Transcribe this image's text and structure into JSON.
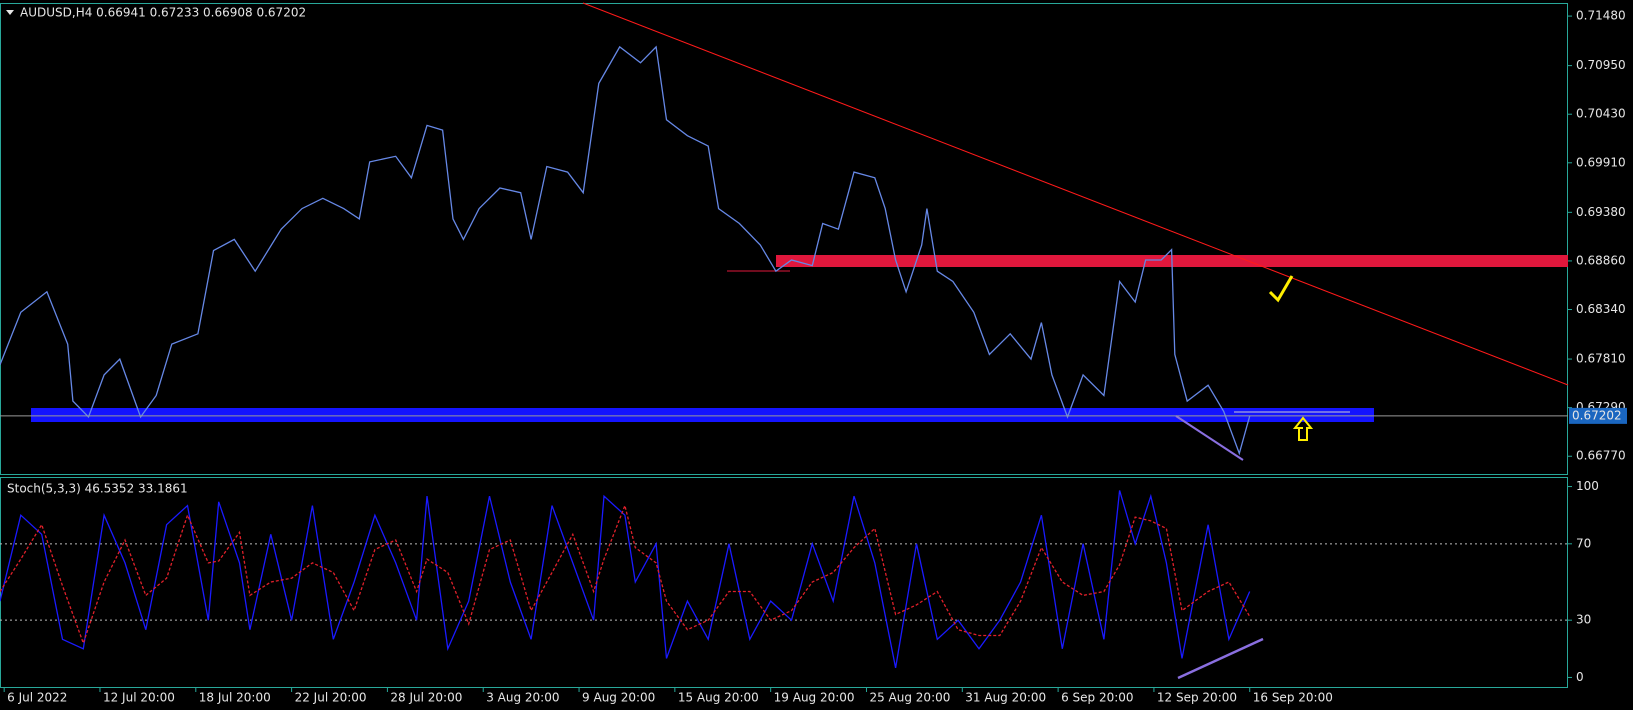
{
  "chart_data": [
    {
      "type": "line",
      "title": "AUDUSD,H4  0.66941 0.67233 0.66908 0.67202",
      "xlim": [
        0,
        376.4
      ],
      "ylim": [
        0.6658,
        0.7162
      ],
      "yticks": [
        {
          "value": 0.7148,
          "label": "0.71480"
        },
        {
          "value": 0.7095,
          "label": "0.70950"
        },
        {
          "value": 0.7043,
          "label": "0.70430"
        },
        {
          "value": 0.6991,
          "label": "0.69910"
        },
        {
          "value": 0.6938,
          "label": "0.69380"
        },
        {
          "value": 0.6886,
          "label": "0.68860"
        },
        {
          "value": 0.6834,
          "label": "0.68340"
        },
        {
          "value": 0.6781,
          "label": "0.67810"
        },
        {
          "value": 0.6729,
          "label": "0.67290"
        },
        {
          "value": 0.6677,
          "label": "0.66770"
        }
      ],
      "last_price": {
        "value": 0.67202,
        "label": "0.67202"
      },
      "series": [
        {
          "color": "#6688e6",
          "x": [
            0,
            5,
            11.25,
            16.25,
            17.5,
            21.25,
            25,
            28.75,
            33.75,
            37.5,
            41.25,
            47.5,
            51.25,
            56.25,
            61.25,
            67.5,
            72.5,
            77.5,
            82.5,
            86.25,
            88.75,
            95,
            98.75,
            102.5,
            106.25,
            108.75,
            111.25,
            115,
            120,
            125,
            127.5,
            131.25,
            136.25,
            140,
            143.75,
            148.75,
            153.75,
            157.5,
            160,
            165,
            170,
            172.5,
            177.5,
            182.5,
            186.25,
            190,
            195,
            197.5,
            201.25,
            205,
            210,
            212.5,
            215,
            217.5,
            221.25,
            222.5,
            225,
            228.75,
            233.75,
            237.5,
            242.5,
            247.5,
            250,
            252.5,
            256.25,
            260,
            265,
            268.75,
            272.5,
            275,
            278.75,
            281.25,
            282,
            285,
            290,
            293.75,
            297.5,
            300
          ],
          "values": [
            0.6775,
            0.6831,
            0.6853,
            0.6797,
            0.6736,
            0.6719,
            0.6764,
            0.6781,
            0.6719,
            0.6742,
            0.6797,
            0.6808,
            0.6897,
            0.6909,
            0.6875,
            0.692,
            0.6942,
            0.6953,
            0.6942,
            0.6931,
            0.6992,
            0.6998,
            0.6975,
            0.7031,
            0.7026,
            0.6931,
            0.6909,
            0.6942,
            0.6964,
            0.6959,
            0.6909,
            0.6987,
            0.6981,
            0.6959,
            0.7076,
            0.7115,
            0.7098,
            0.7115,
            0.7037,
            0.702,
            0.7009,
            0.6942,
            0.6926,
            0.6903,
            0.6875,
            0.6887,
            0.6881,
            0.6926,
            0.692,
            0.6981,
            0.6975,
            0.6942,
            0.6887,
            0.6853,
            0.6903,
            0.6942,
            0.6875,
            0.6864,
            0.6831,
            0.6786,
            0.6808,
            0.6781,
            0.682,
            0.6764,
            0.6719,
            0.6764,
            0.6742,
            0.6864,
            0.6842,
            0.6887,
            0.6887,
            0.6898,
            0.6786,
            0.6736,
            0.6753,
            0.6725,
            0.668,
            0.672
          ]
        }
      ]
    },
    {
      "type": "line",
      "title": "Stoch(5,3,3) 46.5352 33.1861",
      "xlim": [
        0,
        376.4
      ],
      "ylim": [
        -5,
        105
      ],
      "yticks": [
        0,
        30,
        70,
        100
      ],
      "levels": [
        70,
        30
      ],
      "xticks": [
        {
          "value": 1,
          "label": "6 Jul 2022"
        },
        {
          "value": 24,
          "label": "12 Jul 20:00"
        },
        {
          "value": 47,
          "label": "18 Jul 20:00"
        },
        {
          "value": 70,
          "label": "22 Jul 20:00"
        },
        {
          "value": 93,
          "label": "28 Jul 20:00"
        },
        {
          "value": 116,
          "label": "3 Aug 20:00"
        },
        {
          "value": 139,
          "label": "9 Aug 20:00"
        },
        {
          "value": 162,
          "label": "15 Aug 20:00"
        },
        {
          "value": 185,
          "label": "19 Aug 20:00"
        },
        {
          "value": 208,
          "label": "25 Aug 20:00"
        },
        {
          "value": 231,
          "label": "31 Aug 20:00"
        },
        {
          "value": 254,
          "label": "6 Sep 20:00"
        },
        {
          "value": 277,
          "label": "12 Sep 20:00"
        },
        {
          "value": 300,
          "label": "16 Sep 20:00"
        }
      ],
      "series": [
        {
          "color": "#1a1aff",
          "dashed": false,
          "x": [
            0,
            5,
            10,
            15,
            20,
            25,
            30,
            35,
            40,
            45,
            50,
            52.5,
            57.5,
            60,
            65,
            70,
            75,
            80,
            85,
            90,
            95,
            100,
            102.5,
            107.5,
            112.5,
            117.5,
            122.5,
            127.5,
            132.5,
            137.5,
            142.5,
            145,
            150,
            152.5,
            157.5,
            160,
            165,
            170,
            175,
            180,
            185,
            190,
            195,
            200,
            205,
            210,
            215,
            220,
            225,
            230,
            235,
            240,
            245,
            250,
            255,
            260,
            265,
            268.75,
            272.5,
            276.25,
            280,
            283.75,
            290,
            295,
            300
          ],
          "values": [
            40,
            85,
            75,
            20,
            15,
            85,
            60,
            25,
            80,
            90,
            30,
            92,
            60,
            25,
            75,
            30,
            90,
            20,
            50,
            85,
            60,
            30,
            95,
            15,
            40,
            95,
            50,
            20,
            90,
            60,
            30,
            95,
            85,
            50,
            70,
            10,
            40,
            20,
            70,
            20,
            40,
            30,
            70,
            40,
            95,
            60,
            5,
            70,
            20,
            30,
            15,
            30,
            50,
            85,
            15,
            70,
            20,
            98,
            70,
            95,
            60,
            10,
            80,
            20,
            45
          ]
        },
        {
          "color": "#e0202a",
          "dashed": true,
          "x": [
            0,
            5,
            10,
            15,
            20,
            25,
            30,
            35,
            40,
            45,
            50,
            52.5,
            57.5,
            60,
            65,
            70,
            75,
            80,
            85,
            90,
            95,
            100,
            102.5,
            107.5,
            112.5,
            117.5,
            122.5,
            127.5,
            132.5,
            137.5,
            142.5,
            145,
            150,
            152.5,
            157.5,
            160,
            165,
            170,
            175,
            180,
            185,
            190,
            195,
            200,
            205,
            210,
            215,
            220,
            225,
            230,
            235,
            240,
            245,
            250,
            255,
            260,
            265,
            268.75,
            272.5,
            276.25,
            280,
            283.75,
            290,
            295,
            300
          ],
          "values": [
            45,
            62,
            80,
            48,
            18,
            50,
            72,
            43,
            52,
            85,
            60,
            61,
            76,
            43,
            50,
            52,
            60,
            55,
            35,
            67,
            72,
            45,
            62,
            55,
            28,
            67,
            72,
            35,
            55,
            75,
            45,
            62,
            90,
            68,
            60,
            40,
            25,
            30,
            45,
            45,
            30,
            35,
            50,
            55,
            68,
            78,
            33,
            38,
            45,
            25,
            22,
            22,
            40,
            68,
            50,
            43,
            45,
            59,
            84,
            82,
            78,
            35,
            45,
            50,
            32
          ]
        }
      ]
    }
  ]
}
